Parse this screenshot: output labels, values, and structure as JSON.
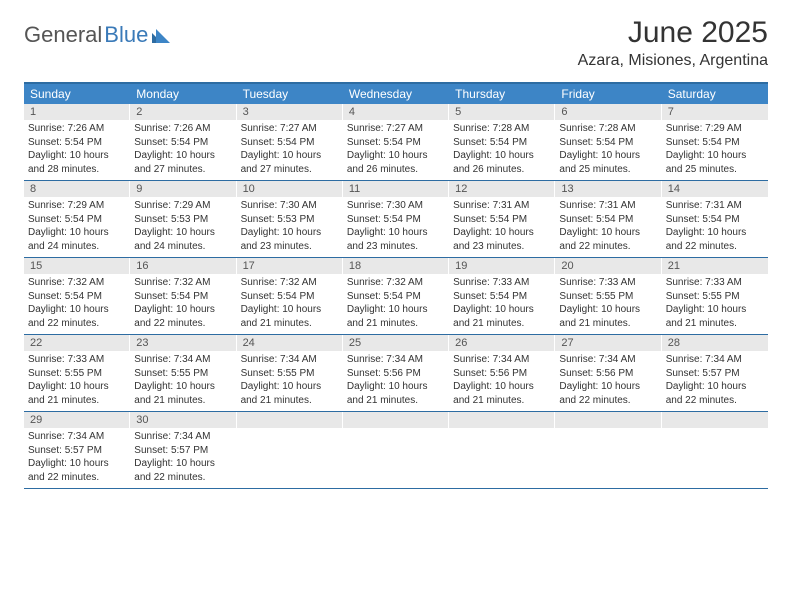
{
  "logo": {
    "part1": "General",
    "part2": "Blue"
  },
  "title": "June 2025",
  "location": "Azara, Misiones, Argentina",
  "weekdays": [
    "Sunday",
    "Monday",
    "Tuesday",
    "Wednesday",
    "Thursday",
    "Friday",
    "Saturday"
  ],
  "colors": {
    "header_bg": "#3d85c6",
    "rule": "#2d6ca2",
    "daynum_bg": "#e8e8e8",
    "logo_blue": "#3a7ab8"
  },
  "weeks": [
    [
      {
        "n": "1",
        "sr": "7:26 AM",
        "ss": "5:54 PM",
        "dl": "10 hours and 28 minutes."
      },
      {
        "n": "2",
        "sr": "7:26 AM",
        "ss": "5:54 PM",
        "dl": "10 hours and 27 minutes."
      },
      {
        "n": "3",
        "sr": "7:27 AM",
        "ss": "5:54 PM",
        "dl": "10 hours and 27 minutes."
      },
      {
        "n": "4",
        "sr": "7:27 AM",
        "ss": "5:54 PM",
        "dl": "10 hours and 26 minutes."
      },
      {
        "n": "5",
        "sr": "7:28 AM",
        "ss": "5:54 PM",
        "dl": "10 hours and 26 minutes."
      },
      {
        "n": "6",
        "sr": "7:28 AM",
        "ss": "5:54 PM",
        "dl": "10 hours and 25 minutes."
      },
      {
        "n": "7",
        "sr": "7:29 AM",
        "ss": "5:54 PM",
        "dl": "10 hours and 25 minutes."
      }
    ],
    [
      {
        "n": "8",
        "sr": "7:29 AM",
        "ss": "5:54 PM",
        "dl": "10 hours and 24 minutes."
      },
      {
        "n": "9",
        "sr": "7:29 AM",
        "ss": "5:53 PM",
        "dl": "10 hours and 24 minutes."
      },
      {
        "n": "10",
        "sr": "7:30 AM",
        "ss": "5:53 PM",
        "dl": "10 hours and 23 minutes."
      },
      {
        "n": "11",
        "sr": "7:30 AM",
        "ss": "5:54 PM",
        "dl": "10 hours and 23 minutes."
      },
      {
        "n": "12",
        "sr": "7:31 AM",
        "ss": "5:54 PM",
        "dl": "10 hours and 23 minutes."
      },
      {
        "n": "13",
        "sr": "7:31 AM",
        "ss": "5:54 PM",
        "dl": "10 hours and 22 minutes."
      },
      {
        "n": "14",
        "sr": "7:31 AM",
        "ss": "5:54 PM",
        "dl": "10 hours and 22 minutes."
      }
    ],
    [
      {
        "n": "15",
        "sr": "7:32 AM",
        "ss": "5:54 PM",
        "dl": "10 hours and 22 minutes."
      },
      {
        "n": "16",
        "sr": "7:32 AM",
        "ss": "5:54 PM",
        "dl": "10 hours and 22 minutes."
      },
      {
        "n": "17",
        "sr": "7:32 AM",
        "ss": "5:54 PM",
        "dl": "10 hours and 21 minutes."
      },
      {
        "n": "18",
        "sr": "7:32 AM",
        "ss": "5:54 PM",
        "dl": "10 hours and 21 minutes."
      },
      {
        "n": "19",
        "sr": "7:33 AM",
        "ss": "5:54 PM",
        "dl": "10 hours and 21 minutes."
      },
      {
        "n": "20",
        "sr": "7:33 AM",
        "ss": "5:55 PM",
        "dl": "10 hours and 21 minutes."
      },
      {
        "n": "21",
        "sr": "7:33 AM",
        "ss": "5:55 PM",
        "dl": "10 hours and 21 minutes."
      }
    ],
    [
      {
        "n": "22",
        "sr": "7:33 AM",
        "ss": "5:55 PM",
        "dl": "10 hours and 21 minutes."
      },
      {
        "n": "23",
        "sr": "7:34 AM",
        "ss": "5:55 PM",
        "dl": "10 hours and 21 minutes."
      },
      {
        "n": "24",
        "sr": "7:34 AM",
        "ss": "5:55 PM",
        "dl": "10 hours and 21 minutes."
      },
      {
        "n": "25",
        "sr": "7:34 AM",
        "ss": "5:56 PM",
        "dl": "10 hours and 21 minutes."
      },
      {
        "n": "26",
        "sr": "7:34 AM",
        "ss": "5:56 PM",
        "dl": "10 hours and 21 minutes."
      },
      {
        "n": "27",
        "sr": "7:34 AM",
        "ss": "5:56 PM",
        "dl": "10 hours and 22 minutes."
      },
      {
        "n": "28",
        "sr": "7:34 AM",
        "ss": "5:57 PM",
        "dl": "10 hours and 22 minutes."
      }
    ],
    [
      {
        "n": "29",
        "sr": "7:34 AM",
        "ss": "5:57 PM",
        "dl": "10 hours and 22 minutes."
      },
      {
        "n": "30",
        "sr": "7:34 AM",
        "ss": "5:57 PM",
        "dl": "10 hours and 22 minutes."
      },
      {
        "empty": true
      },
      {
        "empty": true
      },
      {
        "empty": true
      },
      {
        "empty": true
      },
      {
        "empty": true
      }
    ]
  ],
  "labels": {
    "sunrise": "Sunrise: ",
    "sunset": "Sunset: ",
    "daylight": "Daylight: "
  }
}
